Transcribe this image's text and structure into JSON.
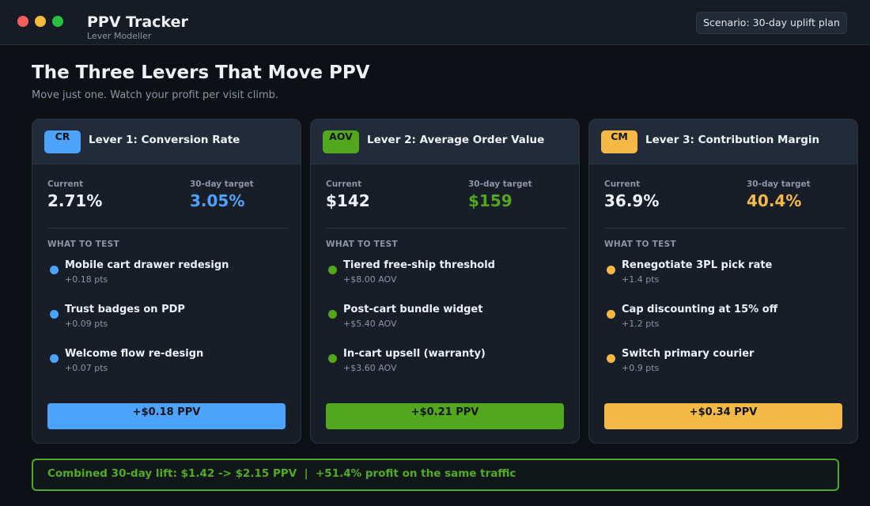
{
  "app": {
    "title": "PPV Tracker",
    "subtitle": "Lever Modeller",
    "scenario": "Scenario: 30-day uplift plan"
  },
  "page": {
    "title": "The Three Levers That Move PPV",
    "subtitle": "Move just one. Watch your profit per visit climb."
  },
  "common": {
    "current_label": "Current",
    "target_label": "30-day target",
    "what_to_test": "WHAT TO TEST"
  },
  "colors": {
    "blue": "#4da3fb",
    "green": "#53a71c",
    "amber": "#f6b945"
  },
  "levers": [
    {
      "badge": "CR",
      "title": "Lever 1: Conversion Rate",
      "current": "2.71%",
      "target": "3.05%",
      "tests": [
        {
          "name": "Mobile cart drawer redesign",
          "impact": "+0.18 pts"
        },
        {
          "name": "Trust badges on PDP",
          "impact": "+0.09 pts"
        },
        {
          "name": "Welcome flow re-design",
          "impact": "+0.07 pts"
        }
      ],
      "result": "+$0.18 PPV"
    },
    {
      "badge": "AOV",
      "title": "Lever 2: Average Order Value",
      "current": "$142",
      "target": "$159",
      "tests": [
        {
          "name": "Tiered free-ship threshold",
          "impact": "+$8.00 AOV"
        },
        {
          "name": "Post-cart bundle widget",
          "impact": "+$5.40 AOV"
        },
        {
          "name": "In-cart upsell (warranty)",
          "impact": "+$3.60 AOV"
        }
      ],
      "result": "+$0.21 PPV"
    },
    {
      "badge": "CM",
      "title": "Lever 3: Contribution Margin",
      "current": "36.9%",
      "target": "40.4%",
      "tests": [
        {
          "name": "Renegotiate 3PL pick rate",
          "impact": "+1.4 pts"
        },
        {
          "name": "Cap discounting at 15% off",
          "impact": "+1.2 pts"
        },
        {
          "name": "Switch primary courier",
          "impact": "+0.9 pts"
        }
      ],
      "result": "+$0.34 PPV"
    }
  ],
  "combined": "Combined 30-day lift: $1.42 -> $2.15 PPV  |  +51.4% profit on the same traffic"
}
